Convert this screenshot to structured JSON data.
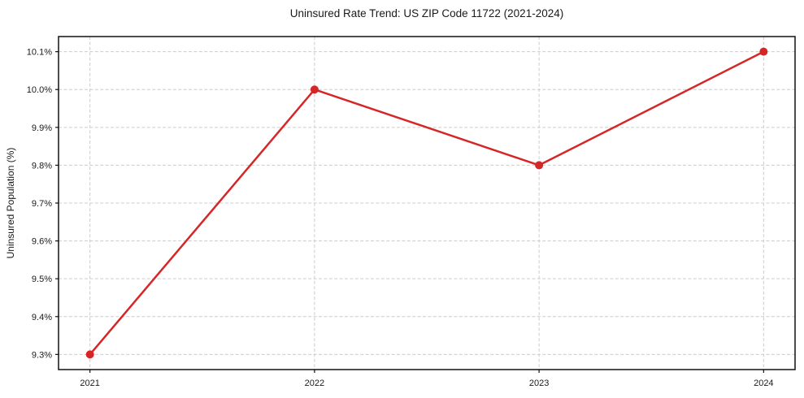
{
  "figure": {
    "title": "Uninsured Rate Trend: US ZIP Code 11722 (2021-2024)",
    "ylabel": "Uninsured Population (%)"
  },
  "chart_data": {
    "type": "line",
    "title": "Uninsured Rate Trend: US ZIP Code 11722 (2021-2024)",
    "xlabel": "",
    "ylabel": "Uninsured Population (%)",
    "x": [
      2021,
      2022,
      2023,
      2024
    ],
    "x_tick_labels": [
      "2021",
      "2022",
      "2023",
      "2024"
    ],
    "series": [
      {
        "name": "Uninsured rate",
        "values": [
          9.3,
          10.0,
          9.8,
          10.1
        ]
      }
    ],
    "y_tick_values": [
      9.3,
      9.4,
      9.5,
      9.6,
      9.7,
      9.8,
      9.9,
      10.0,
      10.1
    ],
    "y_tick_labels": [
      "9.3%",
      "9.4%",
      "9.5%",
      "9.6%",
      "9.7%",
      "9.8%",
      "9.9%",
      "10.0%",
      "10.1%"
    ],
    "xlim": [
      2020.86,
      2024.14
    ],
    "ylim": [
      9.26,
      10.14
    ],
    "grid": true,
    "grid_style": "dashed",
    "legend": "none",
    "marker": "circle",
    "colors": {
      "line": "#d62728",
      "marker": "#d62728",
      "grid": "#cccccc",
      "spine": "#111111",
      "text": "#1a1a1a",
      "background": "#ffffff"
    }
  }
}
